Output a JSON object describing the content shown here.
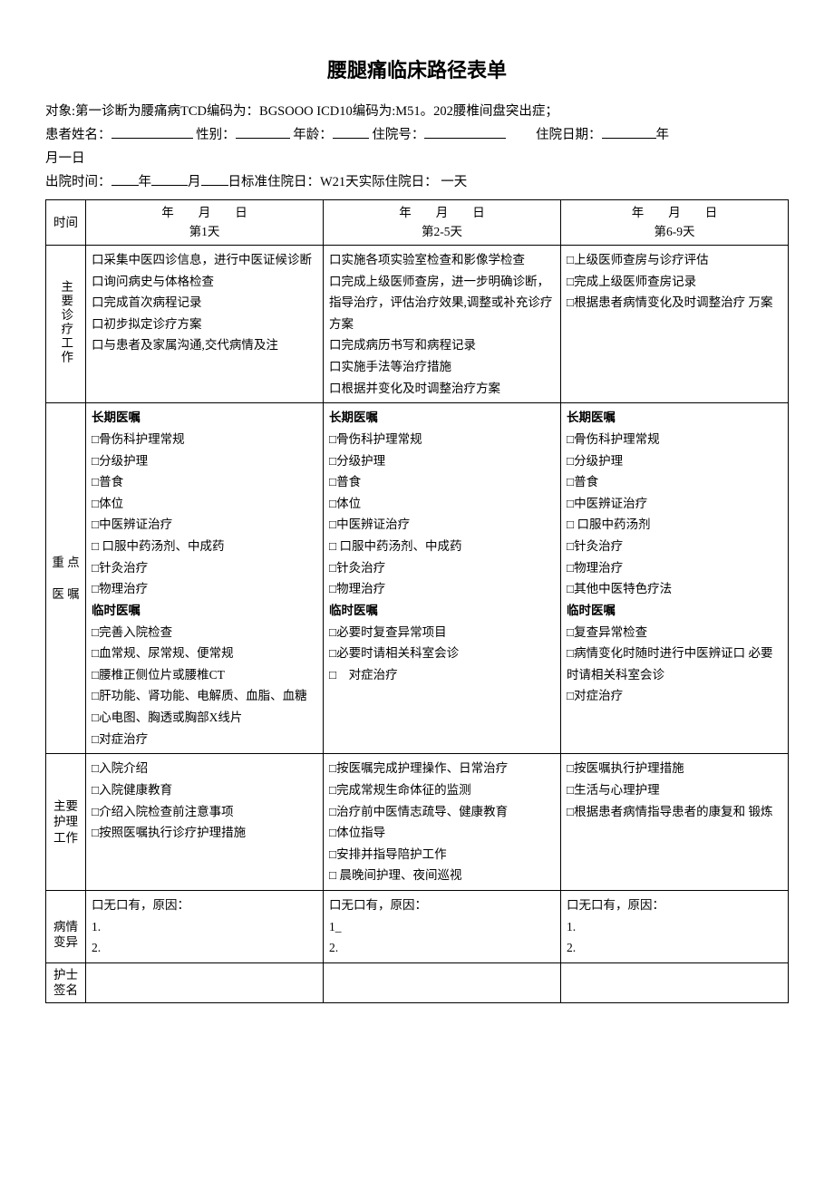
{
  "title": "腰腿痛临床路径表单",
  "meta": {
    "subject_line": "对象:第一诊断为腰痛病TCD编码为：BGSOOO ICD10编码为:M51。202腰椎间盘突出症；",
    "patient_name_label": "患者姓名：",
    "sex_label": "性别：",
    "age_label": "年龄：",
    "admission_no_label": "住院号：",
    "admission_date_label": "住院日期：",
    "year": "年",
    "month": "月",
    "day_unit": "月一日",
    "discharge_label": "出院时间：",
    "std_days_label": "日标准住院日：W21天实际住院日：  一天"
  },
  "columns": {
    "time_label": "时间",
    "c1": {
      "date_label": "年　　月　　日",
      "day_label": "第1天"
    },
    "c2": {
      "date_label": "年　　月　　日",
      "day_label": "第2-5天"
    },
    "c3": {
      "date_label": "年　　月　　日",
      "day_label": "第6-9天"
    }
  },
  "rows": {
    "main_work": {
      "label": "主要诊疗工作",
      "c1": [
        "口采集中医四诊信息，进行中医证候诊断",
        "口询问病史与体格检查",
        "口完成首次病程记录",
        "口初步拟定诊疗方案",
        "口与患者及家属沟通,交代病情及注"
      ],
      "c2": [
        "口实施各项实验室检查和影像学检查",
        "口完成上级医师查房，进一步明确诊断，指导治疗，评估治疗效果,调整或补充诊疗方案",
        "口完成病历书写和病程记录",
        "口实施手法等治疗措施",
        "口根据并变化及时调整治疗方案"
      ],
      "c3": [
        "□上级医师查房与诊疗评估",
        "□完成上级医师查房记录",
        "□根据患者病情变化及时调整治疗 万案"
      ]
    },
    "orders": {
      "label1": "重 点",
      "label2": "医 嘱",
      "long_label": "长期医嘱",
      "temp_label": "临时医嘱",
      "c1_long": [
        "□骨伤科护理常规",
        "□分级护理",
        "□普食",
        "□体位",
        "□中医辨证治疗",
        "□ 口服中药汤剂、中成药",
        "□针灸治疗",
        "□物理治疗"
      ],
      "c1_temp": [
        "□完善入院检查",
        "□血常规、尿常规、便常规",
        "□腰椎正侧位片或腰椎CT",
        "□肝功能、肾功能、电解质、血脂、血糖",
        "□心电图、胸透或胸部X线片",
        "□对症治疗"
      ],
      "c2_long": [
        "□骨伤科护理常规",
        "□分级护理",
        "□普食",
        "□体位",
        "□中医辨证治疗",
        "□ 口服中药汤剂、中成药",
        "□针灸治疗",
        "□物理治疗"
      ],
      "c2_temp": [
        "□必要时复查异常项目",
        "□必要时请相关科室会诊",
        "□　对症治疗"
      ],
      "c3_long": [
        "□骨伤科护理常规",
        "□分级护理",
        "□普食",
        "□中医辨证治疗",
        "□ 口服中药汤剂",
        "□针灸治疗",
        "□物理治疗",
        "□其他中医特色疗法"
      ],
      "c3_temp": [
        "□复查异常检查",
        "□病情变化时随时进行中医辨证口 必要时请相关科室会诊",
        "□对症治疗"
      ]
    },
    "nursing": {
      "label1": "主要",
      "label2": "护理",
      "label3": "工作",
      "c1": [
        "□入院介绍",
        "□入院健康教育",
        "□介绍入院检查前注意事项",
        "□按照医嘱执行诊疗护理措施"
      ],
      "c2": [
        "□按医嘱完成护理操作、日常治疗",
        "□完成常规生命体征的监测",
        "□治疗前中医情志疏导、健康教育",
        "□体位指导",
        "□安排并指导陪护工作",
        "□ 晨晚间护理、夜间巡视"
      ],
      "c3": [
        "□按医嘱执行护理措施",
        "□生活与心理护理",
        "□根据患者病情指导患者的康复和 锻炼"
      ]
    },
    "variance": {
      "label1": "病情",
      "label2": "变异",
      "c1": [
        "口无口有，原因：",
        "1.",
        "2."
      ],
      "c2": [
        "口无口有，原因：",
        "1_",
        "2."
      ],
      "c3": [
        "口无口有，原因：",
        "1.",
        "2."
      ]
    },
    "nurse_sign": {
      "label1": "护士",
      "label2": "签名"
    }
  }
}
